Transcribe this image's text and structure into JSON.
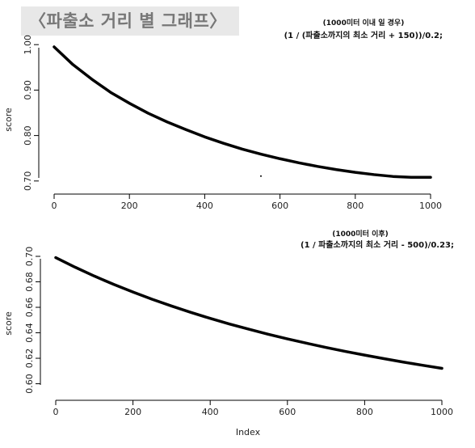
{
  "header": {
    "title": "〈파출소 거리 별 그래프〉"
  },
  "colors": {
    "curve": "#000000",
    "axis": "#000000",
    "banner": "#e8e8e8"
  },
  "chart_data": [
    {
      "type": "line",
      "annotation": "(1000미터 이내 일 경우)",
      "formula": "(1 / (파출소까지의 최소 거리 + 150))/0.2;",
      "xlabel": "",
      "ylabel": "score",
      "xlim": [
        0,
        1000
      ],
      "ylim": [
        0.705,
        0.995
      ],
      "xticks": [
        0,
        200,
        400,
        600,
        800,
        1000
      ],
      "yticks": [
        0.7,
        0.8,
        0.9,
        1.0
      ],
      "ytick_labels": [
        "0.70",
        "0.80",
        "0.90",
        "1.00"
      ],
      "series": [
        {
          "x": [
            0,
            50,
            100,
            150,
            200,
            250,
            300,
            350,
            400,
            450,
            500,
            550,
            600,
            650,
            700,
            750,
            800,
            850,
            900,
            950,
            1000
          ],
          "y": [
            0.995,
            0.956,
            0.924,
            0.895,
            0.871,
            0.849,
            0.83,
            0.813,
            0.797,
            0.783,
            0.77,
            0.759,
            0.749,
            0.74,
            0.732,
            0.725,
            0.719,
            0.714,
            0.71,
            0.708,
            0.708
          ]
        }
      ],
      "grid": false
    },
    {
      "type": "line",
      "annotation": "(1000미터 이후)",
      "formula": "(1 / 파출소까지의 최소 거리 - 500)/0.23;",
      "xlabel": "Index",
      "ylabel": "score",
      "xlim": [
        0,
        1000
      ],
      "ylim": [
        0.594,
        0.7
      ],
      "xticks": [
        0,
        200,
        400,
        600,
        800,
        1000
      ],
      "yticks": [
        0.6,
        0.62,
        0.64,
        0.66,
        0.68,
        0.7
      ],
      "ytick_labels": [
        "0.60",
        "0.62",
        "0.64",
        "0.66",
        "0.68",
        "0.70"
      ],
      "series": [
        {
          "x": [
            0,
            50,
            100,
            150,
            200,
            250,
            300,
            350,
            400,
            450,
            500,
            550,
            600,
            650,
            700,
            750,
            800,
            850,
            900,
            950,
            1000
          ],
          "y": [
            0.699,
            0.6915,
            0.6845,
            0.678,
            0.672,
            0.6663,
            0.661,
            0.656,
            0.6513,
            0.6469,
            0.6428,
            0.6389,
            0.6352,
            0.6318,
            0.6285,
            0.6254,
            0.6225,
            0.6197,
            0.617,
            0.6145,
            0.6121
          ]
        }
      ],
      "grid": false
    }
  ]
}
